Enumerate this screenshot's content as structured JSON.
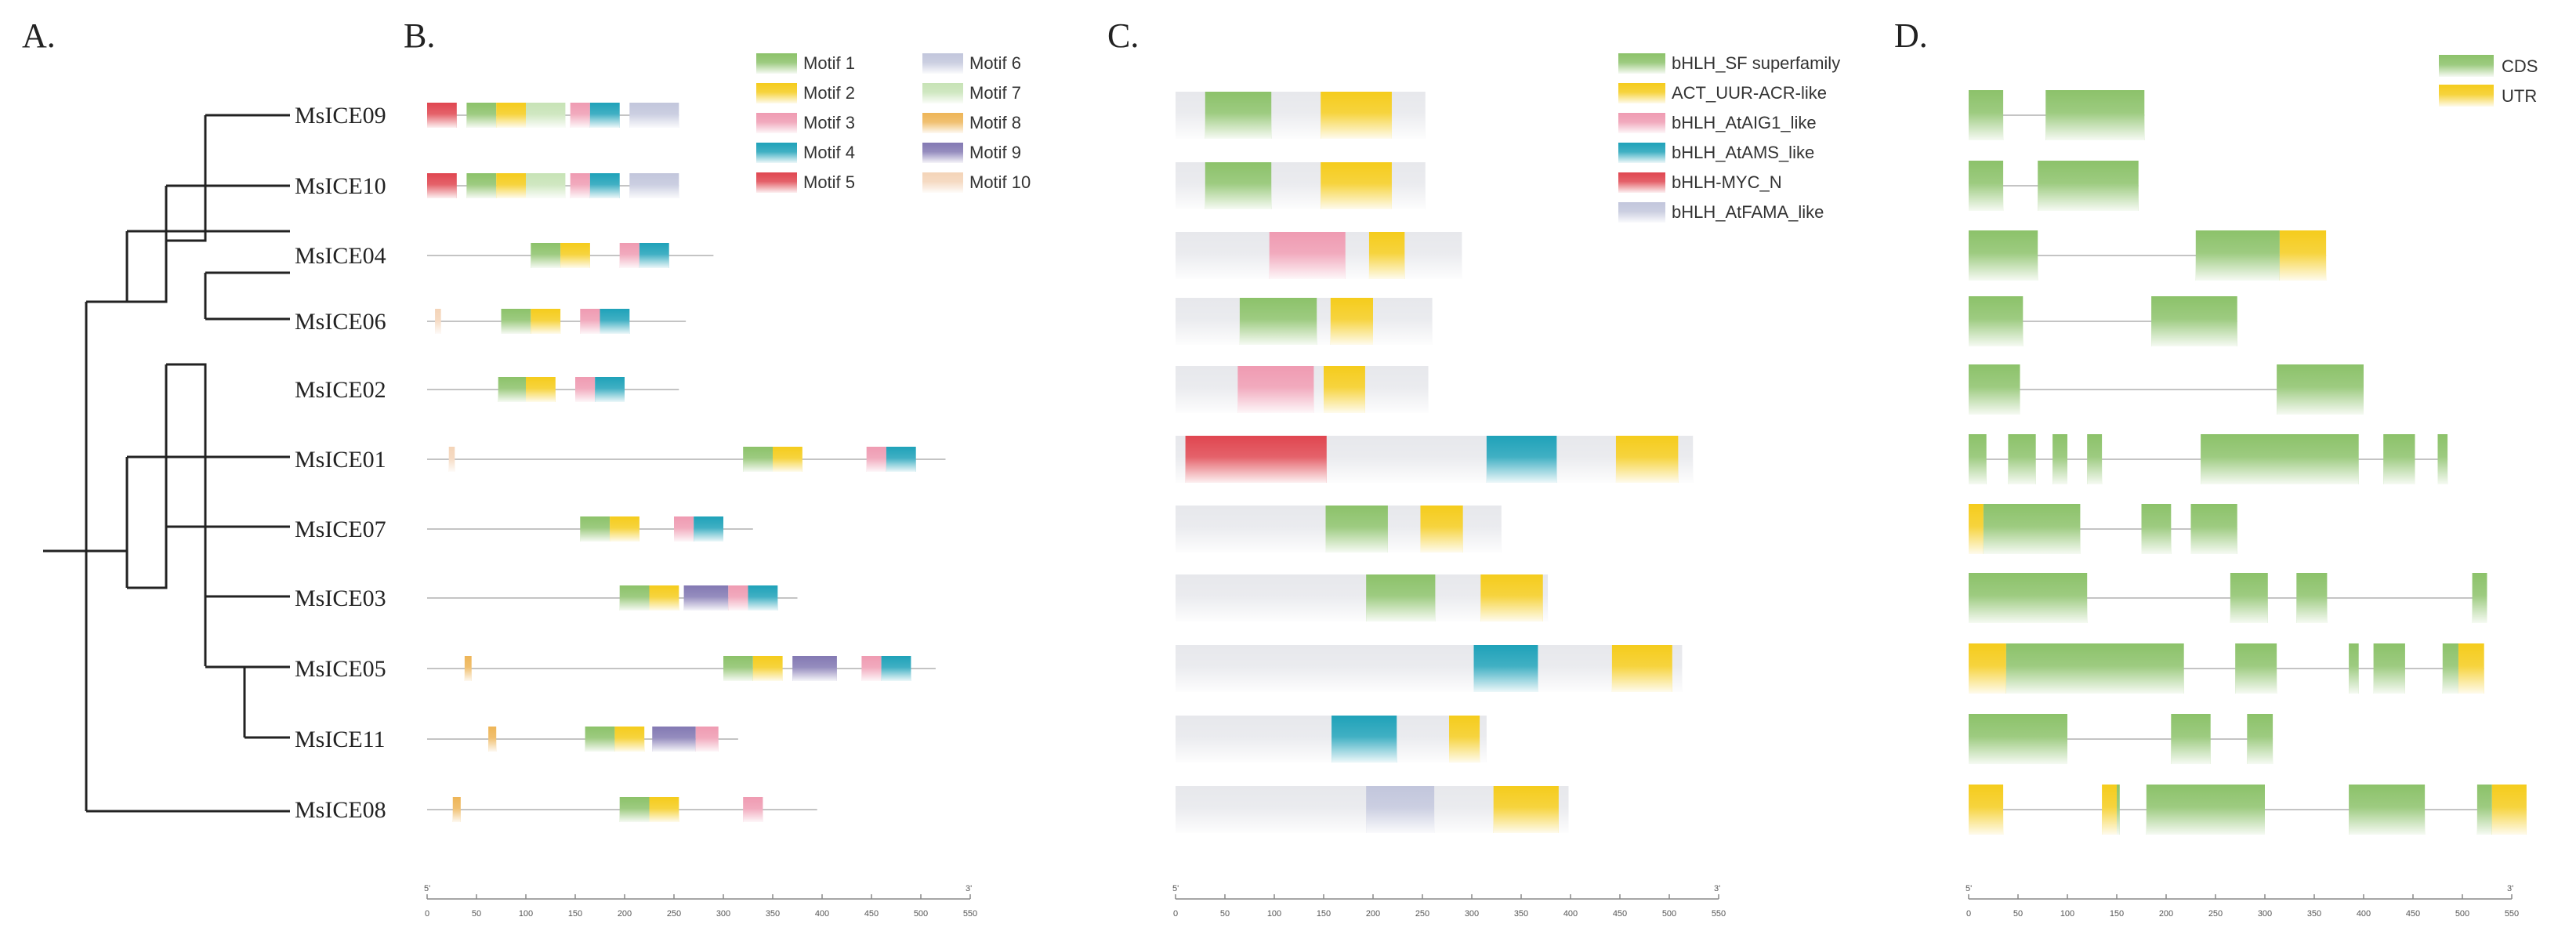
{
  "panels": {
    "a": "A.",
    "b": "B.",
    "c": "C.",
    "d": "D."
  },
  "genes": [
    "MsICE09",
    "MsICE10",
    "MsICE04",
    "MsICE06",
    "MsICE02",
    "MsICE01",
    "MsICE07",
    "MsICE03",
    "MsICE05",
    "MsICE11",
    "MsICE08"
  ],
  "colors": {
    "motif_1": "#8cc26a",
    "motif_2": "#f5cc1c",
    "motif_3": "#ef9bb2",
    "motif_4": "#1fa2b9",
    "motif_5": "#e04650",
    "motif_6": "#c2c6dc",
    "motif_7": "#c7e3b6",
    "motif_8": "#eeb557",
    "motif_9": "#8379b3",
    "motif_10": "#f4d4b8",
    "bHLH_SF": "#8cc26a",
    "ACT": "#f5cc1c",
    "AtAIG1": "#ef9bb2",
    "AtAMS": "#1fa2b9",
    "MYC_N": "#e04650",
    "AtFAMA": "#c2c6dc",
    "CDS": "#8cc26a",
    "UTR": "#f5cc1c",
    "backbone": "#e7e8ec"
  },
  "panelB": {
    "legend": [
      {
        "key": "motif_1",
        "label": "Motif 1"
      },
      {
        "key": "motif_2",
        "label": "Motif 2"
      },
      {
        "key": "motif_3",
        "label": "Motif 3"
      },
      {
        "key": "motif_4",
        "label": "Motif 4"
      },
      {
        "key": "motif_5",
        "label": "Motif 5"
      },
      {
        "key": "motif_6",
        "label": "Motif 6"
      },
      {
        "key": "motif_7",
        "label": "Motif 7"
      },
      {
        "key": "motif_8",
        "label": "Motif 8"
      },
      {
        "key": "motif_9",
        "label": "Motif 9"
      },
      {
        "key": "motif_10",
        "label": "Motif 10"
      }
    ],
    "axis": {
      "max": 550,
      "ticks": [
        "0",
        "50",
        "100",
        "150",
        "200",
        "250",
        "300",
        "350",
        "400",
        "450",
        "500",
        "550"
      ],
      "start_label": "5'",
      "end_label": "3'"
    },
    "rows": [
      {
        "length": 255,
        "motifs": [
          [
            0,
            30,
            "motif_5"
          ],
          [
            40,
            70,
            "motif_1"
          ],
          [
            70,
            100,
            "motif_2"
          ],
          [
            100,
            140,
            "motif_7"
          ],
          [
            145,
            165,
            "motif_3"
          ],
          [
            165,
            195,
            "motif_4"
          ],
          [
            205,
            255,
            "motif_6"
          ]
        ]
      },
      {
        "length": 255,
        "motifs": [
          [
            0,
            30,
            "motif_5"
          ],
          [
            40,
            70,
            "motif_1"
          ],
          [
            70,
            100,
            "motif_2"
          ],
          [
            100,
            140,
            "motif_7"
          ],
          [
            145,
            165,
            "motif_3"
          ],
          [
            165,
            195,
            "motif_4"
          ],
          [
            205,
            255,
            "motif_6"
          ]
        ]
      },
      {
        "length": 290,
        "motifs": [
          [
            105,
            135,
            "motif_1"
          ],
          [
            135,
            165,
            "motif_2"
          ],
          [
            195,
            215,
            "motif_3"
          ],
          [
            215,
            245,
            "motif_4"
          ]
        ]
      },
      {
        "length": 262,
        "motifs": [
          [
            8,
            14,
            "motif_10"
          ],
          [
            75,
            105,
            "motif_1"
          ],
          [
            105,
            135,
            "motif_2"
          ],
          [
            155,
            175,
            "motif_3"
          ],
          [
            175,
            205,
            "motif_4"
          ]
        ]
      },
      {
        "length": 255,
        "motifs": [
          [
            72,
            100,
            "motif_1"
          ],
          [
            100,
            130,
            "motif_2"
          ],
          [
            150,
            170,
            "motif_3"
          ],
          [
            170,
            200,
            "motif_4"
          ]
        ]
      },
      {
        "length": 525,
        "motifs": [
          [
            22,
            28,
            "motif_10"
          ],
          [
            320,
            350,
            "motif_1"
          ],
          [
            350,
            380,
            "motif_2"
          ],
          [
            445,
            465,
            "motif_3"
          ],
          [
            465,
            495,
            "motif_4"
          ]
        ]
      },
      {
        "length": 330,
        "motifs": [
          [
            155,
            185,
            "motif_1"
          ],
          [
            185,
            215,
            "motif_2"
          ],
          [
            250,
            270,
            "motif_3"
          ],
          [
            270,
            300,
            "motif_4"
          ]
        ]
      },
      {
        "length": 375,
        "motifs": [
          [
            195,
            225,
            "motif_1"
          ],
          [
            225,
            255,
            "motif_2"
          ],
          [
            260,
            305,
            "motif_9"
          ],
          [
            305,
            325,
            "motif_3"
          ],
          [
            325,
            355,
            "motif_4"
          ]
        ]
      },
      {
        "length": 515,
        "motifs": [
          [
            38,
            45,
            "motif_8"
          ],
          [
            300,
            330,
            "motif_1"
          ],
          [
            330,
            360,
            "motif_2"
          ],
          [
            370,
            415,
            "motif_9"
          ],
          [
            440,
            460,
            "motif_3"
          ],
          [
            460,
            490,
            "motif_4"
          ]
        ]
      },
      {
        "length": 315,
        "motifs": [
          [
            62,
            70,
            "motif_8"
          ],
          [
            160,
            190,
            "motif_1"
          ],
          [
            190,
            220,
            "motif_2"
          ],
          [
            228,
            272,
            "motif_9"
          ],
          [
            272,
            295,
            "motif_3"
          ]
        ]
      },
      {
        "length": 395,
        "motifs": [
          [
            26,
            34,
            "motif_8"
          ],
          [
            195,
            225,
            "motif_1"
          ],
          [
            225,
            255,
            "motif_2"
          ],
          [
            320,
            340,
            "motif_3"
          ]
        ]
      }
    ]
  },
  "panelC": {
    "legend": [
      {
        "key": "bHLH_SF",
        "label": "bHLH_SF superfamily"
      },
      {
        "key": "ACT",
        "label": "ACT_UUR-ACR-like"
      },
      {
        "key": "AtAIG1",
        "label": "bHLH_AtAIG1_like"
      },
      {
        "key": "AtAMS",
        "label": "bHLH_AtAMS_like"
      },
      {
        "key": "MYC_N",
        "label": "bHLH-MYC_N"
      },
      {
        "key": "AtFAMA",
        "label": "bHLH_AtFAMA_like"
      }
    ],
    "axis": {
      "max": 550,
      "ticks": [
        "0",
        "50",
        "100",
        "150",
        "200",
        "250",
        "300",
        "350",
        "400",
        "450",
        "500",
        "550"
      ],
      "start_label": "5'",
      "end_label": "3'"
    },
    "rows": [
      {
        "length": 253,
        "domains": [
          [
            30,
            97,
            "bHLH_SF"
          ],
          [
            147,
            219,
            "ACT"
          ]
        ]
      },
      {
        "length": 253,
        "domains": [
          [
            30,
            97,
            "bHLH_SF"
          ],
          [
            147,
            219,
            "ACT"
          ]
        ]
      },
      {
        "length": 290,
        "domains": [
          [
            95,
            172,
            "AtAIG1"
          ],
          [
            196,
            232,
            "ACT"
          ]
        ]
      },
      {
        "length": 260,
        "domains": [
          [
            65,
            143,
            "bHLH_SF"
          ],
          [
            157,
            200,
            "ACT"
          ]
        ]
      },
      {
        "length": 256,
        "domains": [
          [
            63,
            140,
            "AtAIG1"
          ],
          [
            150,
            192,
            "ACT"
          ]
        ]
      },
      {
        "length": 524,
        "domains": [
          [
            10,
            153,
            "MYC_N"
          ],
          [
            315,
            386,
            "AtAMS"
          ],
          [
            446,
            509,
            "ACT"
          ]
        ]
      },
      {
        "length": 330,
        "domains": [
          [
            152,
            215,
            "bHLH_SF"
          ],
          [
            248,
            291,
            "ACT"
          ]
        ]
      },
      {
        "length": 377,
        "domains": [
          [
            193,
            263,
            "bHLH_SF"
          ],
          [
            309,
            372,
            "ACT"
          ]
        ]
      },
      {
        "length": 513,
        "domains": [
          [
            302,
            367,
            "AtAMS"
          ],
          [
            442,
            503,
            "ACT"
          ]
        ]
      },
      {
        "length": 315,
        "domains": [
          [
            158,
            224,
            "AtAMS"
          ],
          [
            277,
            308,
            "ACT"
          ]
        ]
      },
      {
        "length": 398,
        "domains": [
          [
            193,
            262,
            "AtFAMA"
          ],
          [
            322,
            388,
            "ACT"
          ]
        ]
      }
    ]
  },
  "panelD": {
    "legend": [
      {
        "key": "CDS",
        "label": "CDS"
      },
      {
        "key": "UTR",
        "label": "UTR"
      }
    ],
    "axis": {
      "max": 550,
      "ticks": [
        "0",
        "50",
        "100",
        "150",
        "200",
        "250",
        "300",
        "350",
        "400",
        "450",
        "500",
        "550"
      ],
      "start_label": "5'",
      "end_label": "3'"
    },
    "rows": [
      {
        "length": 178,
        "features": [
          [
            0,
            35,
            "CDS"
          ],
          [
            78,
            178,
            "CDS"
          ]
        ]
      },
      {
        "length": 172,
        "features": [
          [
            0,
            35,
            "CDS"
          ],
          [
            70,
            172,
            "CDS"
          ]
        ]
      },
      {
        "length": 362,
        "features": [
          [
            0,
            70,
            "CDS"
          ],
          [
            230,
            315,
            "CDS"
          ],
          [
            315,
            362,
            "UTR"
          ]
        ]
      },
      {
        "length": 272,
        "features": [
          [
            0,
            55,
            "CDS"
          ],
          [
            185,
            272,
            "CDS"
          ]
        ]
      },
      {
        "length": 400,
        "features": [
          [
            0,
            52,
            "CDS"
          ],
          [
            312,
            400,
            "CDS"
          ]
        ]
      },
      {
        "length": 485,
        "features": [
          [
            0,
            18,
            "CDS"
          ],
          [
            40,
            68,
            "CDS"
          ],
          [
            85,
            100,
            "CDS"
          ],
          [
            120,
            135,
            "CDS"
          ],
          [
            235,
            395,
            "CDS"
          ],
          [
            420,
            452,
            "CDS"
          ],
          [
            475,
            485,
            "CDS"
          ]
        ]
      },
      {
        "length": 272,
        "features": [
          [
            0,
            15,
            "UTR"
          ],
          [
            15,
            113,
            "CDS"
          ],
          [
            175,
            205,
            "CDS"
          ],
          [
            225,
            272,
            "CDS"
          ]
        ]
      },
      {
        "length": 525,
        "features": [
          [
            0,
            120,
            "CDS"
          ],
          [
            265,
            303,
            "CDS"
          ],
          [
            332,
            363,
            "CDS"
          ],
          [
            510,
            525,
            "CDS"
          ]
        ]
      },
      {
        "length": 522,
        "features": [
          [
            0,
            38,
            "UTR"
          ],
          [
            38,
            218,
            "CDS"
          ],
          [
            270,
            312,
            "CDS"
          ],
          [
            385,
            395,
            "CDS"
          ],
          [
            410,
            442,
            "CDS"
          ],
          [
            480,
            496,
            "CDS"
          ],
          [
            496,
            522,
            "UTR"
          ]
        ]
      },
      {
        "length": 308,
        "features": [
          [
            0,
            100,
            "CDS"
          ],
          [
            205,
            245,
            "CDS"
          ],
          [
            282,
            308,
            "CDS"
          ]
        ]
      },
      {
        "length": 565,
        "features": [
          [
            0,
            35,
            "UTR"
          ],
          [
            135,
            150,
            "UTR"
          ],
          [
            150,
            153,
            "CDS"
          ],
          [
            180,
            300,
            "CDS"
          ],
          [
            385,
            462,
            "CDS"
          ],
          [
            515,
            530,
            "CDS"
          ],
          [
            530,
            565,
            "UTR"
          ]
        ]
      }
    ]
  }
}
